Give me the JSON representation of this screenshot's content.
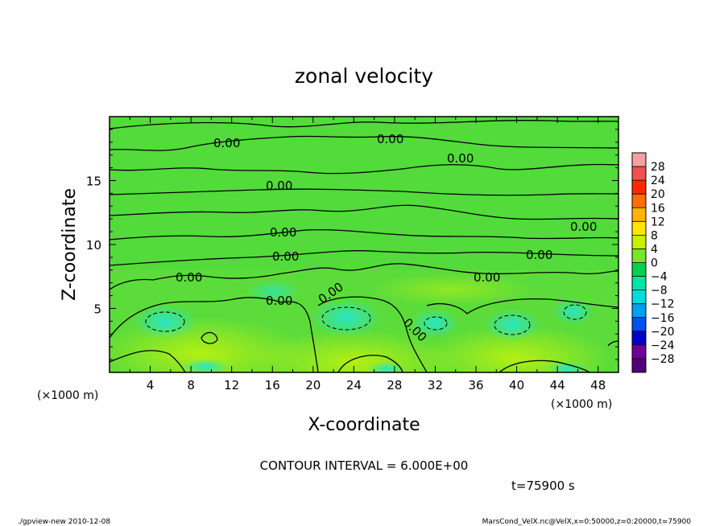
{
  "chart_data": {
    "type": "heatmap",
    "title": "zonal velocity",
    "xlabel": "X-coordinate",
    "ylabel": "Z-coordinate",
    "x_unit_left": "(×1000 m)",
    "x_unit_right": "(×1000 m)",
    "xlim": [
      0,
      50
    ],
    "ylim": [
      0,
      20
    ],
    "xticks": [
      4,
      8,
      12,
      16,
      20,
      24,
      28,
      32,
      36,
      40,
      44,
      48
    ],
    "yticks": [
      5,
      10,
      15
    ],
    "colorbar": {
      "levels": [
        28,
        24,
        20,
        16,
        12,
        8,
        4,
        0,
        -4,
        -8,
        -12,
        -16,
        -20,
        -24,
        -28
      ],
      "colors": [
        "#f7a0a0",
        "#f05050",
        "#ff2800",
        "#ff6e00",
        "#ffb400",
        "#ffe600",
        "#c8f000",
        "#78e628",
        "#00d250",
        "#00e6a0",
        "#00dcdc",
        "#00a0f0",
        "#0050f0",
        "#0000c8",
        "#6e0096",
        "#500078"
      ]
    },
    "contour_labels": [
      "0.00",
      "0.00",
      "0.00",
      "0.00",
      "0.00",
      "0.00",
      "0.00",
      "0.00",
      "0.00",
      "0.00",
      "0.00",
      "0.00",
      "0.00"
    ],
    "contour_interval": "CONTOUR INTERVAL = 6.000E+00",
    "time_label": "t=75900 s",
    "footer_left": "./gpview-new  2010-12-08",
    "footer_right": "MarsCond_VelX.nc@VelX,x=0:50000,z=0:20000,t=75900"
  }
}
